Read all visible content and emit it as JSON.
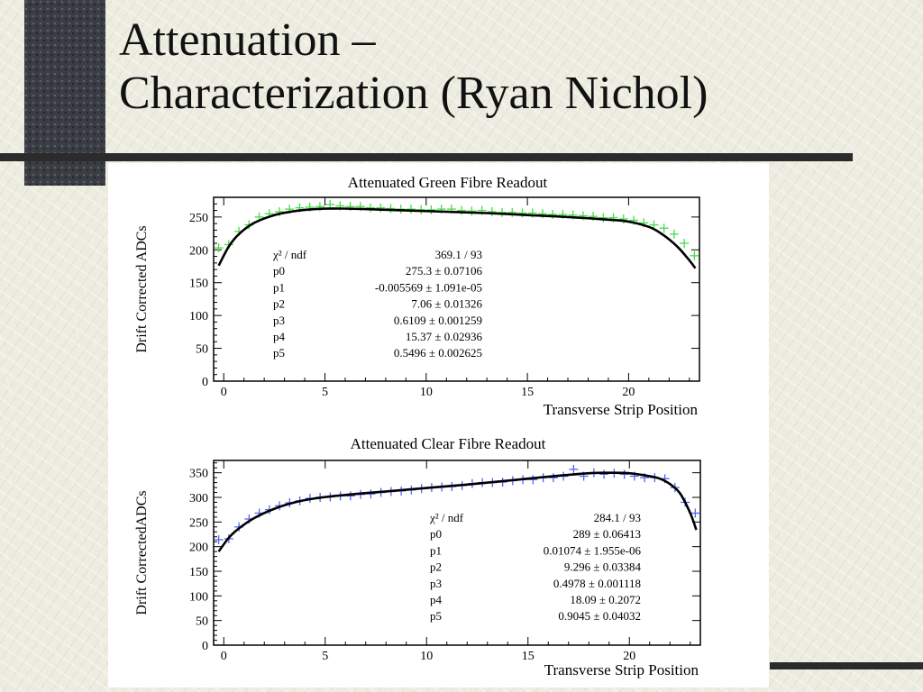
{
  "slide": {
    "title_line1": "Attenuation –",
    "title_line2": "Characterization (Ryan Nichol)"
  },
  "chart_data": [
    {
      "type": "scatter",
      "title": "Attenuated Green Fibre Readout",
      "xlabel": "Transverse Strip Position",
      "ylabel": "Drift Corrected ADCs",
      "xlim": [
        -0.5,
        23.5
      ],
      "ylim": [
        0,
        280
      ],
      "xticks": [
        0,
        5,
        10,
        15,
        20
      ],
      "yticks": [
        0,
        50,
        100,
        150,
        200,
        250
      ],
      "marker_color": "#44dd44",
      "fit_color": "#000000",
      "series": [
        {
          "x": [
            -0.25,
            0.25,
            0.75,
            1.25,
            1.75,
            2.25,
            2.75,
            3.25,
            3.75,
            4.25,
            4.75,
            5.25,
            5.75,
            6.25,
            6.75,
            7.25,
            7.75,
            8.25,
            8.75,
            9.25,
            9.75,
            10.25,
            10.75,
            11.25,
            11.75,
            12.25,
            12.75,
            13.25,
            13.75,
            14.25,
            14.75,
            15.25,
            15.75,
            16.25,
            16.75,
            17.25,
            17.75,
            18.25,
            18.75,
            19.25,
            19.75,
            20.25,
            20.75,
            21.25,
            21.75,
            22.25,
            22.75,
            23.25
          ],
          "y": [
            203,
            208,
            228,
            238,
            250,
            255,
            258,
            262,
            264,
            265,
            266,
            269,
            267,
            266,
            266,
            264,
            264,
            263,
            262,
            262,
            261,
            261,
            262,
            262,
            260,
            259,
            260,
            258,
            257,
            257,
            256,
            256,
            255,
            254,
            254,
            253,
            252,
            251,
            249,
            249,
            247,
            245,
            241,
            238,
            233,
            224,
            210,
            191
          ]
        }
      ],
      "fit": {
        "x": [
          -0.25,
          0.25,
          0.75,
          1.5,
          2.5,
          3.5,
          4.5,
          5.5,
          7,
          9,
          11,
          13,
          15,
          17,
          19,
          20,
          21,
          21.5,
          22,
          22.5,
          23,
          23.3
        ],
        "y": [
          176,
          205,
          224,
          241,
          253,
          259,
          262,
          263,
          262,
          260,
          258,
          256,
          253,
          250,
          246,
          243,
          235,
          227,
          216,
          202,
          184,
          172
        ]
      },
      "stats": [
        {
          "name": "χ² / ndf",
          "value": "369.1 / 93"
        },
        {
          "name": "p0",
          "value": "275.3 ± 0.07106"
        },
        {
          "name": "p1",
          "value": "-0.005569 ± 1.091e-05"
        },
        {
          "name": "p2",
          "value": "7.06 ± 0.01326"
        },
        {
          "name": "p3",
          "value": "0.6109 ± 0.001259"
        },
        {
          "name": "p4",
          "value": "15.37 ± 0.02936"
        },
        {
          "name": "p5",
          "value": "0.5496 ± 0.002625"
        }
      ]
    },
    {
      "type": "scatter",
      "title": "Attenuated Clear Fibre Readout",
      "xlabel": "Transverse Strip Position",
      "ylabel": "Drift CorrectedADCs",
      "xlim": [
        -0.5,
        23.5
      ],
      "ylim": [
        0,
        375
      ],
      "xticks": [
        0,
        5,
        10,
        15,
        20
      ],
      "yticks": [
        0,
        50,
        100,
        150,
        200,
        250,
        300,
        350
      ],
      "marker_color": "#5566ee",
      "fit_color": "#000000",
      "series": [
        {
          "x": [
            -0.25,
            0.25,
            0.75,
            1.25,
            1.75,
            2.25,
            2.75,
            3.25,
            3.75,
            4.25,
            4.75,
            5.25,
            5.75,
            6.25,
            6.75,
            7.25,
            7.75,
            8.25,
            8.75,
            9.25,
            9.75,
            10.25,
            10.75,
            11.25,
            11.75,
            12.25,
            12.75,
            13.25,
            13.75,
            14.25,
            14.75,
            15.25,
            15.75,
            16.25,
            16.75,
            17.25,
            17.75,
            18.25,
            18.75,
            19.25,
            19.75,
            20.25,
            20.75,
            21.25,
            21.75,
            22.25,
            22.75,
            23.25
          ],
          "y": [
            214,
            216,
            240,
            256,
            268,
            275,
            283,
            289,
            293,
            298,
            300,
            301,
            303,
            303,
            306,
            307,
            310,
            312,
            313,
            315,
            318,
            320,
            321,
            322,
            324,
            328,
            330,
            330,
            331,
            334,
            336,
            336,
            340,
            340,
            343,
            357,
            343,
            350,
            347,
            349,
            347,
            343,
            340,
            340,
            338,
            320,
            290,
            268
          ]
        }
      ],
      "fit": {
        "x": [
          -0.25,
          0.25,
          0.75,
          1.5,
          2.5,
          3.5,
          4.5,
          6,
          8,
          10,
          12,
          14,
          16,
          18,
          19,
          20,
          21,
          21.5,
          22,
          22.5,
          23,
          23.3
        ],
        "y": [
          190,
          218,
          237,
          258,
          277,
          290,
          298,
          305,
          312,
          319,
          326,
          334,
          342,
          349,
          350,
          349,
          343,
          338,
          327,
          308,
          268,
          234
        ]
      },
      "stats": [
        {
          "name": "χ² / ndf",
          "value": "284.1 / 93"
        },
        {
          "name": "p0",
          "value": "289 ± 0.06413"
        },
        {
          "name": "p1",
          "value": "0.01074 ± 1.955e-06"
        },
        {
          "name": "p2",
          "value": "9.296 ± 0.03384"
        },
        {
          "name": "p3",
          "value": "0.4978 ± 0.001118"
        },
        {
          "name": "p4",
          "value": "18.09 ± 0.2072"
        },
        {
          "name": "p5",
          "value": "0.9045 ± 0.04032"
        }
      ]
    }
  ]
}
